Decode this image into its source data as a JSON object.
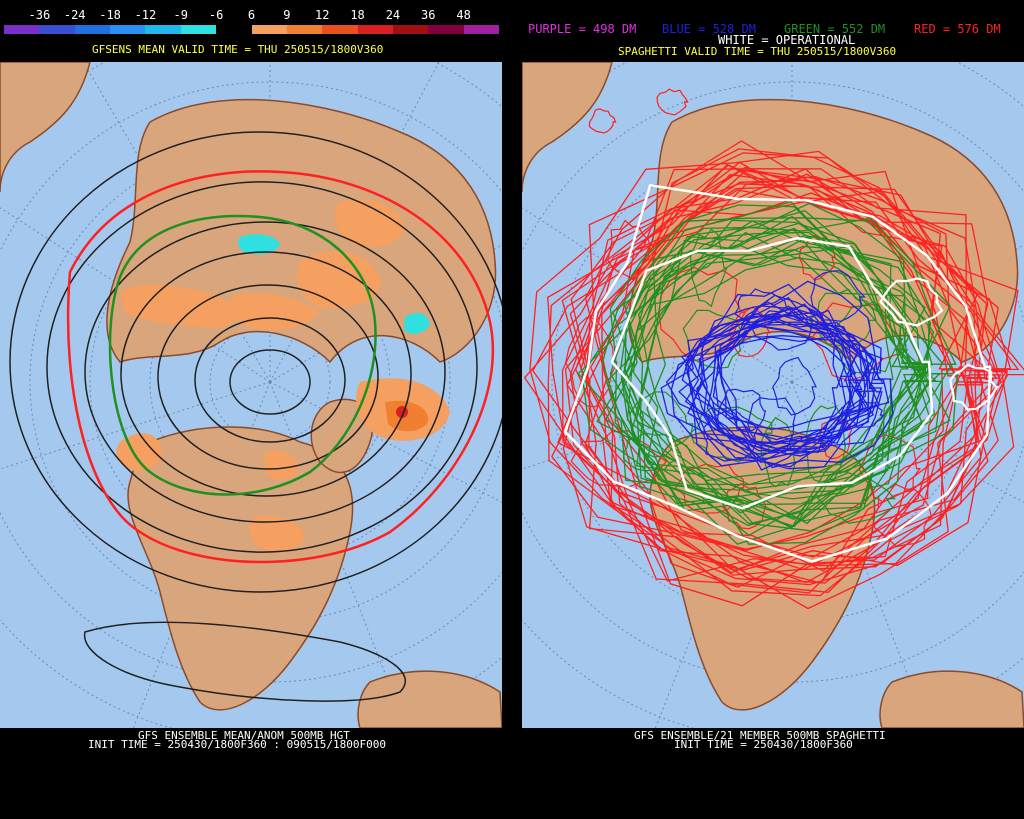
{
  "colorbar": {
    "ticks": [
      "-36",
      "-24",
      "-18",
      "-12",
      "-9",
      "-6",
      "6",
      "9",
      "12",
      "18",
      "24",
      "36",
      "48"
    ],
    "colors": [
      "#7a30c8",
      "#3850d0",
      "#2070e0",
      "#2890f0",
      "#20b8e8",
      "#30e0e0",
      "#000000",
      "#f5a060",
      "#f08030",
      "#e85020",
      "#d82020",
      "#a01010",
      "#800040",
      "#a020a0"
    ]
  },
  "left": {
    "valid_title": "GFSENS MEAN VALID TIME = THU 250515/1800V360",
    "footer_line1": "GFS ENSEMBLE MEAN/ANOM 500MB HGT",
    "footer_line2": "INIT TIME = 250430/1800F360 : 090515/1800F000"
  },
  "right": {
    "legend_purple": "PURPLE = 498 DM",
    "legend_blue": "BLUE = 528 DM",
    "legend_green": "GREEN = 552 DM",
    "legend_red": "RED = 576 DM",
    "legend_white": "WHITE = OPERATIONAL",
    "valid_title": "SPAGHETTI VALID TIME = THU 250515/1800V360",
    "footer_line1": "GFS ENSEMBLE/21 MEMBER 500MB SPAGHETTI",
    "footer_line2": "INIT TIME = 250430/1800F360"
  },
  "colors": {
    "ocean": "#a5c8ee",
    "land": "#d9a57c",
    "border": "#8b4a2a",
    "purple": "#e030e0",
    "blue": "#2020e0",
    "green": "#209020",
    "red": "#ff2020",
    "white": "#ffffff",
    "title_yellow": "#ffff40"
  }
}
